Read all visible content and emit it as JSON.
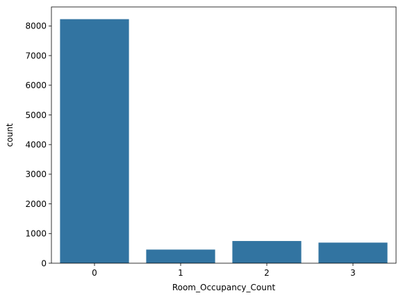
{
  "chart_data": {
    "type": "bar",
    "categories": [
      "0",
      "1",
      "2",
      "3"
    ],
    "values": [
      8228,
      459,
      748,
      694
    ],
    "xlabel": "Room_Occupancy_Count",
    "ylabel": "count",
    "ylim": [
      0,
      8640
    ],
    "yticks": [
      0,
      1000,
      2000,
      3000,
      4000,
      5000,
      6000,
      7000,
      8000
    ],
    "grid": false,
    "bar_color": "#3274a1"
  }
}
